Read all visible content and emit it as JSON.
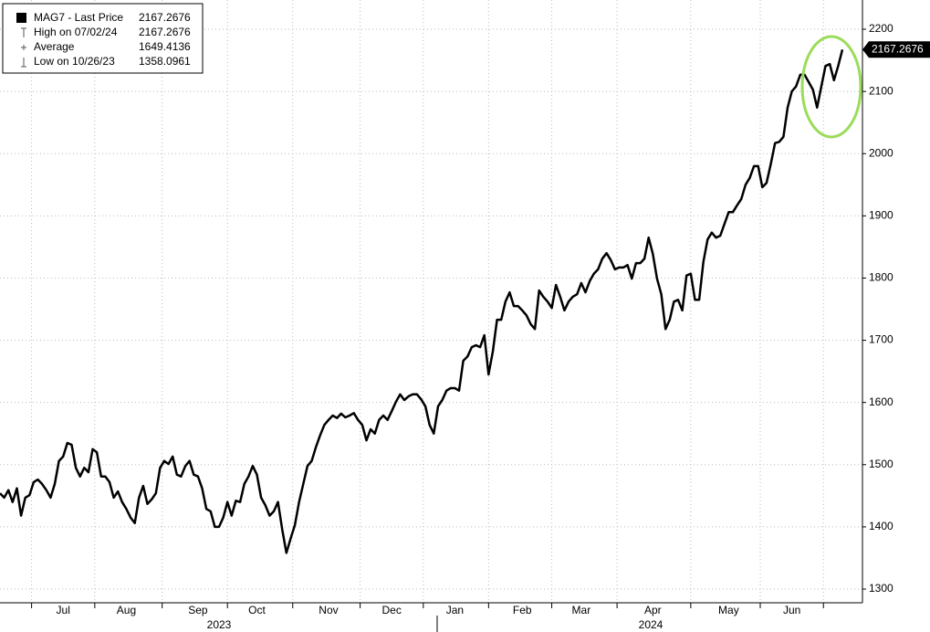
{
  "chart_data": {
    "type": "line",
    "series": [
      {
        "name": "MAG7 - Last Price",
        "color": "#000000",
        "values": [
          1454,
          1447,
          1459,
          1440,
          1462,
          1418,
          1447,
          1451,
          1472,
          1476,
          1469,
          1459,
          1447,
          1469,
          1506,
          1513,
          1535,
          1532,
          1495,
          1481,
          1495,
          1488,
          1525,
          1520,
          1481,
          1481,
          1472,
          1447,
          1457,
          1440,
          1429,
          1415,
          1406,
          1447,
          1466,
          1437,
          1444,
          1454,
          1495,
          1506,
          1501,
          1513,
          1484,
          1481,
          1498,
          1506,
          1484,
          1481,
          1462,
          1429,
          1425,
          1400,
          1400,
          1415,
          1440,
          1418,
          1442,
          1440,
          1469,
          1481,
          1498,
          1484,
          1447,
          1435,
          1418,
          1425,
          1440,
          1396,
          1358.0961,
          1381,
          1403,
          1440,
          1469,
          1498,
          1506,
          1528,
          1547,
          1564,
          1572,
          1579,
          1575,
          1582,
          1576,
          1579,
          1583,
          1572,
          1564,
          1539,
          1557,
          1550,
          1572,
          1579,
          1572,
          1586,
          1601,
          1613,
          1604,
          1610,
          1613,
          1613,
          1605,
          1594,
          1564,
          1550,
          1594,
          1604,
          1619,
          1623,
          1623,
          1619,
          1667,
          1674,
          1689,
          1692,
          1689,
          1708,
          1645,
          1682,
          1733,
          1733,
          1762,
          1777,
          1755,
          1755,
          1748,
          1740,
          1726,
          1718,
          1780,
          1770,
          1762,
          1752,
          1789,
          1770,
          1748,
          1762,
          1770,
          1774,
          1792,
          1777,
          1795,
          1807,
          1814,
          1831,
          1840,
          1829,
          1814,
          1817,
          1817,
          1821,
          1799,
          1824,
          1824,
          1831,
          1865,
          1839,
          1799,
          1774,
          1718,
          1733,
          1762,
          1765,
          1748,
          1804,
          1807,
          1765,
          1765,
          1826,
          1862,
          1873,
          1865,
          1868,
          1887,
          1906,
          1906,
          1917,
          1927,
          1950,
          1961,
          1980,
          1980,
          1946,
          1953,
          1983,
          2017,
          2019,
          2027,
          2074,
          2100,
          2108,
          2127,
          2127,
          2115,
          2103,
          2074,
          2108,
          2141,
          2144,
          2118,
          2141,
          2167.2676
        ]
      }
    ],
    "month_labels": [
      {
        "index": 15,
        "label": "Jul"
      },
      {
        "index": 30,
        "label": "Aug"
      },
      {
        "index": 47,
        "label": "Sep"
      },
      {
        "index": 61,
        "label": "Oct"
      },
      {
        "index": 78,
        "label": "Nov"
      },
      {
        "index": 93,
        "label": "Dec"
      },
      {
        "index": 108,
        "label": "Jan"
      },
      {
        "index": 124,
        "label": "Feb"
      },
      {
        "index": 138,
        "label": "Mar"
      },
      {
        "index": 155,
        "label": "Apr"
      },
      {
        "index": 173,
        "label": "May"
      },
      {
        "index": 188,
        "label": "Jun"
      }
    ],
    "years": [
      "2023",
      "2024"
    ],
    "ylim": [
      1278,
      2247
    ],
    "yticks": [
      1300,
      1400,
      1500,
      1600,
      1700,
      1800,
      1900,
      2000,
      2100,
      2200
    ],
    "grid": true,
    "stats": [
      {
        "label": "High on 07/02/24",
        "value": 2167.2676
      },
      {
        "label": "Average",
        "value": 1649.4136
      },
      {
        "label": "Low on 10/26/23",
        "value": 1358.0961
      }
    ]
  }
}
